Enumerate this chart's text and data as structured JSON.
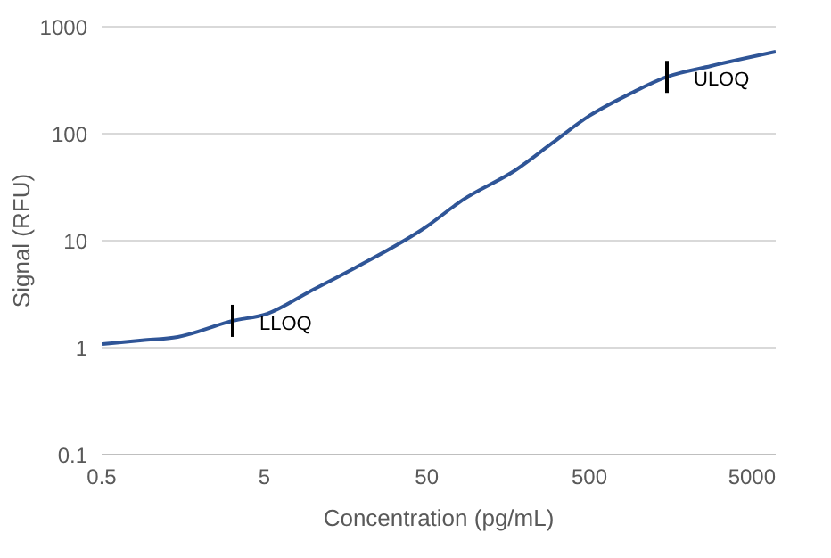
{
  "chart_data": {
    "type": "line",
    "xlabel": "Concentration (pg/mL)",
    "ylabel": "Signal (RFU)",
    "log": "xy",
    "xlim": [
      0.5,
      7000
    ],
    "xticks": [
      0.5,
      5,
      50,
      500,
      5000
    ],
    "ylim": [
      0.1,
      1000
    ],
    "yticks": [
      0.1,
      1,
      10,
      100,
      1000
    ],
    "grid": "y",
    "marker": "none",
    "line_style": "solid",
    "series": [
      {
        "color": "#2f5597",
        "x": [
          0.5,
          0.89,
          1.47,
          3.2,
          5.2,
          9.7,
          18.2,
          50,
          83,
          177,
          293,
          500,
          908,
          1500,
          2800,
          7000
        ],
        "values": [
          1.08,
          1.17,
          1.26,
          1.78,
          2.07,
          3.4,
          5.6,
          13.6,
          24,
          46,
          81,
          147,
          240,
          340,
          430,
          584
        ]
      }
    ],
    "annotations": [
      {
        "text": "LLOQ",
        "x": 3.2,
        "y": 1.78
      },
      {
        "text": "ULOQ",
        "x": 1500,
        "y": 340
      }
    ]
  }
}
